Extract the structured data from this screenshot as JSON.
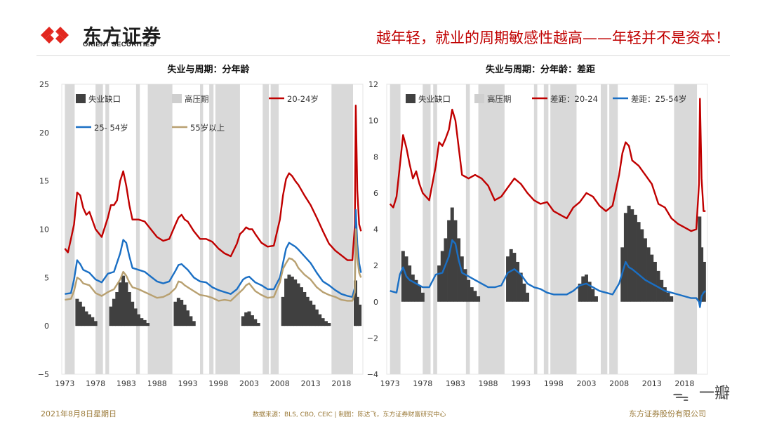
{
  "header": {
    "company_cn": "东方证券",
    "company_en": "ORIENT SECURITIES",
    "headline": "越年轻，就业的周期敏感性越高——年轻并不是资本！"
  },
  "footer": {
    "date": "2021年8月8日星期日",
    "source": "数据来源：BLS, CBO, CEIC | 制图：陈达飞，东方证券财富研究中心",
    "company": "东方证券股份有限公司"
  },
  "watermark": {
    "text": "一瓣"
  },
  "colors": {
    "red": "#c00000",
    "blue": "#1a6fc4",
    "tan": "#b8a070",
    "gap": "#404040",
    "recession": "#d9d9d9",
    "brand": "#e2271f"
  },
  "chart_data": [
    {
      "type": "line",
      "title": "失业与周期：分年龄",
      "xlim": [
        1972.5,
        2021.5
      ],
      "ylim": [
        -5,
        25
      ],
      "yticks": [
        "25",
        "20",
        "15",
        "10",
        "5",
        "0",
        "−5"
      ],
      "xticks": [
        "1973",
        "1978",
        "1983",
        "1988",
        "1993",
        "1998",
        "2003",
        "2008",
        "2013",
        "2018"
      ],
      "legend": [
        "失业缺口",
        "高压期",
        "20-24岁",
        "25- 54岁",
        "55岁以上"
      ],
      "high_pressure_periods": [
        [
          1973.0,
          1974.6
        ],
        [
          1978.0,
          1979.2
        ],
        [
          1979.6,
          1980.2
        ],
        [
          1984.6,
          1985.2
        ],
        [
          1986.5,
          1990.5
        ],
        [
          1995.0,
          1995.5
        ],
        [
          1996.5,
          1997.2
        ],
        [
          1997.5,
          2001.5
        ],
        [
          2005.2,
          2006.2
        ],
        [
          2006.5,
          2007.8
        ],
        [
          2016.4,
          2019.9
        ]
      ],
      "unemployment_gap": {
        "x": [
          1975.0,
          1975.5,
          1976,
          1976.5,
          1977,
          1977.5,
          1978,
          1980.5,
          1981,
          1981.5,
          1982,
          1982.5,
          1983,
          1983.5,
          1984,
          1984.5,
          1985,
          1985.5,
          1986,
          1986.5,
          1991,
          1991.5,
          1992,
          1992.5,
          1993,
          1993.5,
          1994,
          2002,
          2002.5,
          2003,
          2003.5,
          2004,
          2004.5,
          2008.5,
          2009,
          2009.5,
          2010,
          2010.5,
          2011,
          2011.5,
          2012,
          2012.5,
          2013,
          2013.5,
          2014,
          2014.5,
          2015,
          2015.5,
          2016,
          2020.3,
          2020.6,
          2021.0
        ],
        "y": [
          2.8,
          2.5,
          2.0,
          1.5,
          1.2,
          0.9,
          0.5,
          2.0,
          2.8,
          3.5,
          4.5,
          5.2,
          4.5,
          3.5,
          2.5,
          1.8,
          1.2,
          0.8,
          0.6,
          0.3,
          2.5,
          2.9,
          2.7,
          2.2,
          1.6,
          1.0,
          0.5,
          1.0,
          1.4,
          1.5,
          1.1,
          0.7,
          0.3,
          3.0,
          4.9,
          5.3,
          5.1,
          4.8,
          4.4,
          4.0,
          3.5,
          3.0,
          2.6,
          2.2,
          1.7,
          1.2,
          0.8,
          0.5,
          0.3,
          4.7,
          3.0,
          2.2
        ]
      },
      "series": [
        {
          "name": "20-24岁",
          "x": [
            1973,
            1973.5,
            1974,
            1974.5,
            1975,
            1975.5,
            1976,
            1976.5,
            1977,
            1978,
            1979,
            1980,
            1980.5,
            1981,
            1981.5,
            1982,
            1982.5,
            1983,
            1983.5,
            1984,
            1985,
            1986,
            1987,
            1988,
            1989,
            1990,
            1991,
            1991.5,
            1992,
            1992.5,
            1993,
            1994,
            1995,
            1996,
            1997,
            1998,
            1999,
            2000,
            2001,
            2001.5,
            2002,
            2002.5,
            2003,
            2003.5,
            2004,
            2005,
            2006,
            2007,
            2008,
            2008.5,
            2009,
            2009.5,
            2010,
            2010.5,
            2011,
            2012,
            2013,
            2014,
            2015,
            2016,
            2017,
            2018,
            2019,
            2019.8,
            2020.2,
            2020.35,
            2020.6,
            2020.9,
            2021.2
          ],
          "values": [
            8.0,
            7.6,
            9.0,
            10.5,
            13.8,
            13.5,
            12.2,
            11.5,
            11.8,
            10.0,
            9.2,
            11.2,
            12.5,
            12.5,
            13.0,
            15.0,
            16.0,
            14.5,
            12.5,
            11.0,
            11.0,
            10.8,
            10.0,
            9.2,
            8.8,
            9.0,
            10.5,
            11.2,
            11.5,
            11.0,
            10.8,
            9.8,
            9.0,
            9.0,
            8.7,
            8.0,
            7.5,
            7.2,
            8.5,
            9.5,
            9.8,
            10.2,
            10.0,
            10.0,
            9.5,
            8.6,
            8.2,
            8.3,
            11.0,
            13.5,
            15.2,
            15.8,
            15.5,
            15.0,
            14.6,
            13.5,
            12.5,
            11.2,
            9.8,
            8.5,
            7.8,
            7.3,
            6.8,
            6.8,
            10.5,
            22.8,
            14.0,
            10.5,
            9.8
          ]
        },
        {
          "name": "25- 54岁",
          "x": [
            1973,
            1974,
            1974.5,
            1975,
            1975.5,
            1976,
            1977,
            1978,
            1979,
            1980,
            1981,
            1982,
            1982.5,
            1983,
            1983.5,
            1984,
            1985,
            1986,
            1987,
            1988,
            1989,
            1990,
            1991,
            1991.5,
            1992,
            1992.5,
            1993,
            1994,
            1995,
            1996,
            1997,
            1998,
            1999,
            2000,
            2001,
            2002,
            2002.5,
            2003,
            2003.5,
            2004,
            2005,
            2006,
            2007,
            2008,
            2008.5,
            2009,
            2009.5,
            2010,
            2010.5,
            2011,
            2012,
            2013,
            2014,
            2015,
            2016,
            2017,
            2018,
            2019,
            2019.8,
            2020.2,
            2020.35,
            2020.6,
            2020.9,
            2021.2
          ],
          "values": [
            3.3,
            3.4,
            4.8,
            6.8,
            6.4,
            5.8,
            5.5,
            4.8,
            4.5,
            5.4,
            5.6,
            7.5,
            8.9,
            8.6,
            7.2,
            6.0,
            5.8,
            5.6,
            5.1,
            4.6,
            4.4,
            4.6,
            5.7,
            6.3,
            6.4,
            6.1,
            5.8,
            5.0,
            4.6,
            4.5,
            4.0,
            3.7,
            3.5,
            3.3,
            3.8,
            4.8,
            5.0,
            5.1,
            4.8,
            4.5,
            4.2,
            3.8,
            3.8,
            5.0,
            6.5,
            8.0,
            8.6,
            8.4,
            8.2,
            7.9,
            7.2,
            6.5,
            5.5,
            4.6,
            4.2,
            3.7,
            3.3,
            3.1,
            3.0,
            4.0,
            12.0,
            8.5,
            6.5,
            5.5
          ]
        },
        {
          "name": "55岁以上",
          "x": [
            1973,
            1974,
            1974.5,
            1975,
            1975.5,
            1976,
            1977,
            1978,
            1979,
            1980,
            1981,
            1982,
            1982.5,
            1983,
            1983.5,
            1984,
            1985,
            1986,
            1987,
            1988,
            1989,
            1990,
            1991,
            1991.5,
            1992,
            1992.5,
            1993,
            1994,
            1995,
            1996,
            1997,
            1998,
            1999,
            2000,
            2001,
            2002,
            2002.5,
            2003,
            2003.5,
            2004,
            2005,
            2006,
            2007,
            2008,
            2008.5,
            2009,
            2009.5,
            2010,
            2010.5,
            2011,
            2012,
            2013,
            2014,
            2015,
            2016,
            2017,
            2018,
            2019,
            2019.8,
            2020.2,
            2020.35,
            2020.6,
            2020.9,
            2021.2
          ],
          "values": [
            2.7,
            2.8,
            3.6,
            5.0,
            4.8,
            4.4,
            4.2,
            3.4,
            3.1,
            3.5,
            3.8,
            4.8,
            5.6,
            5.2,
            4.5,
            4.0,
            3.8,
            3.5,
            3.2,
            2.9,
            3.0,
            3.3,
            3.9,
            4.6,
            4.5,
            4.2,
            4.0,
            3.6,
            3.2,
            3.1,
            2.9,
            2.6,
            2.7,
            2.6,
            3.2,
            3.8,
            4.2,
            4.4,
            4.0,
            3.6,
            3.2,
            2.9,
            3.0,
            4.5,
            5.9,
            6.5,
            7.0,
            6.9,
            6.6,
            6.0,
            5.3,
            4.8,
            4.0,
            3.5,
            3.2,
            3.0,
            2.7,
            2.6,
            2.6,
            3.5,
            10.0,
            7.0,
            5.5,
            5.0
          ]
        }
      ]
    },
    {
      "type": "line",
      "title": "失业与周期：分年龄：差距",
      "xlim": [
        1972.5,
        2021.5
      ],
      "ylim": [
        -4,
        12
      ],
      "yticks": [
        "12",
        "10",
        "8",
        "6",
        "4",
        "2",
        "0",
        "−2",
        "−4"
      ],
      "xticks": [
        "1973",
        "1978",
        "1983",
        "1988",
        "1993",
        "1998",
        "2003",
        "2008",
        "2013",
        "2018"
      ],
      "legend": [
        "失业缺口",
        "高压期",
        "差距：20-24",
        "差距：25-54岁"
      ],
      "high_pressure_periods": [
        [
          1973.0,
          1974.6
        ],
        [
          1978.0,
          1979.2
        ],
        [
          1979.6,
          1980.2
        ],
        [
          1984.6,
          1985.2
        ],
        [
          1986.5,
          1990.5
        ],
        [
          1995.0,
          1995.5
        ],
        [
          1996.5,
          1997.2
        ],
        [
          1997.5,
          2001.5
        ],
        [
          2005.2,
          2006.2
        ],
        [
          2006.5,
          2007.8
        ],
        [
          2016.4,
          2019.9
        ]
      ],
      "unemployment_gap": {
        "x": [
          1975.0,
          1975.5,
          1976,
          1976.5,
          1977,
          1977.5,
          1978,
          1980.5,
          1981,
          1981.5,
          1982,
          1982.5,
          1983,
          1983.5,
          1984,
          1984.5,
          1985,
          1985.5,
          1986,
          1986.5,
          1991,
          1991.5,
          1992,
          1992.5,
          1993,
          1993.5,
          1994,
          2002,
          2002.5,
          2003,
          2003.5,
          2004,
          2004.5,
          2008.5,
          2009,
          2009.5,
          2010,
          2010.5,
          2011,
          2011.5,
          2012,
          2012.5,
          2013,
          2013.5,
          2014,
          2014.5,
          2015,
          2015.5,
          2016,
          2020.3,
          2020.6,
          2021.0
        ],
        "y": [
          2.8,
          2.5,
          2.0,
          1.5,
          1.2,
          0.9,
          0.5,
          2.0,
          2.8,
          3.5,
          4.5,
          5.2,
          4.5,
          3.5,
          2.5,
          1.8,
          1.2,
          0.8,
          0.6,
          0.3,
          2.5,
          2.9,
          2.7,
          2.2,
          1.6,
          1.0,
          0.5,
          1.0,
          1.4,
          1.5,
          1.1,
          0.7,
          0.3,
          3.0,
          4.9,
          5.3,
          5.1,
          4.8,
          4.4,
          4.0,
          3.5,
          3.0,
          2.6,
          2.2,
          1.7,
          1.2,
          0.8,
          0.5,
          0.3,
          4.7,
          3.0,
          2.2
        ]
      },
      "series": [
        {
          "name": "差距：20-24",
          "x": [
            1973,
            1973.5,
            1974,
            1974.5,
            1975,
            1975.5,
            1976,
            1976.5,
            1977,
            1977.5,
            1978,
            1979,
            1980,
            1980.5,
            1981,
            1981.5,
            1982,
            1982.5,
            1983,
            1983.5,
            1984,
            1985,
            1986,
            1987,
            1988,
            1989,
            1990,
            1991,
            1992,
            1993,
            1994,
            1995,
            1996,
            1997,
            1998,
            1999,
            2000,
            2001,
            2002,
            2003,
            2004,
            2005,
            2006,
            2007,
            2008,
            2008.5,
            2009,
            2009.5,
            2010,
            2011,
            2012,
            2013,
            2014,
            2015,
            2016,
            2017,
            2018,
            2019,
            2019.8,
            2020.2,
            2020.35,
            2020.6,
            2020.9,
            2021.2
          ],
          "values": [
            5.4,
            5.2,
            5.8,
            7.5,
            9.2,
            8.5,
            7.6,
            6.8,
            7.2,
            6.5,
            6.0,
            5.6,
            7.5,
            8.8,
            8.6,
            9.0,
            9.5,
            10.6,
            10.0,
            8.5,
            7.0,
            6.8,
            7.0,
            6.8,
            6.4,
            5.6,
            5.8,
            6.3,
            6.8,
            6.5,
            6.0,
            5.6,
            5.4,
            5.5,
            5.0,
            4.8,
            4.6,
            5.2,
            5.5,
            6.0,
            5.8,
            5.3,
            5.0,
            5.3,
            7.0,
            8.2,
            8.8,
            8.6,
            7.8,
            7.5,
            7.0,
            6.5,
            5.4,
            5.2,
            4.6,
            4.3,
            4.1,
            3.9,
            4.0,
            6.5,
            11.2,
            6.8,
            5.0,
            5.0
          ]
        },
        {
          "name": "差距：25-54岁",
          "x": [
            1973,
            1974,
            1974.5,
            1975,
            1975.5,
            1976,
            1977,
            1978,
            1979,
            1980,
            1981,
            1982,
            1982.5,
            1983,
            1983.5,
            1984,
            1985,
            1986,
            1987,
            1988,
            1989,
            1990,
            1991,
            1992,
            1993,
            1994,
            1995,
            1996,
            1997,
            1998,
            1999,
            2000,
            2001,
            2002,
            2003,
            2004,
            2005,
            2006,
            2007,
            2008,
            2008.5,
            2009,
            2009.5,
            2010,
            2011,
            2012,
            2013,
            2014,
            2015,
            2016,
            2017,
            2018,
            2019,
            2019.8,
            2020.2,
            2020.35,
            2020.6,
            2020.9,
            2021.2
          ],
          "values": [
            0.6,
            0.5,
            1.5,
            1.9,
            1.4,
            1.2,
            1.0,
            0.8,
            0.8,
            1.5,
            1.6,
            2.5,
            3.4,
            3.2,
            2.3,
            1.6,
            1.4,
            1.2,
            1.0,
            0.8,
            0.8,
            0.9,
            1.6,
            1.8,
            1.5,
            1.0,
            0.8,
            0.7,
            0.5,
            0.4,
            0.4,
            0.4,
            0.6,
            0.9,
            1.0,
            0.8,
            0.6,
            0.5,
            0.4,
            1.0,
            1.6,
            2.2,
            1.9,
            1.8,
            1.5,
            1.2,
            1.0,
            0.8,
            0.6,
            0.5,
            0.4,
            0.3,
            0.2,
            0.2,
            0.0,
            -0.3,
            0.3,
            0.5,
            0.6
          ]
        }
      ]
    }
  ]
}
